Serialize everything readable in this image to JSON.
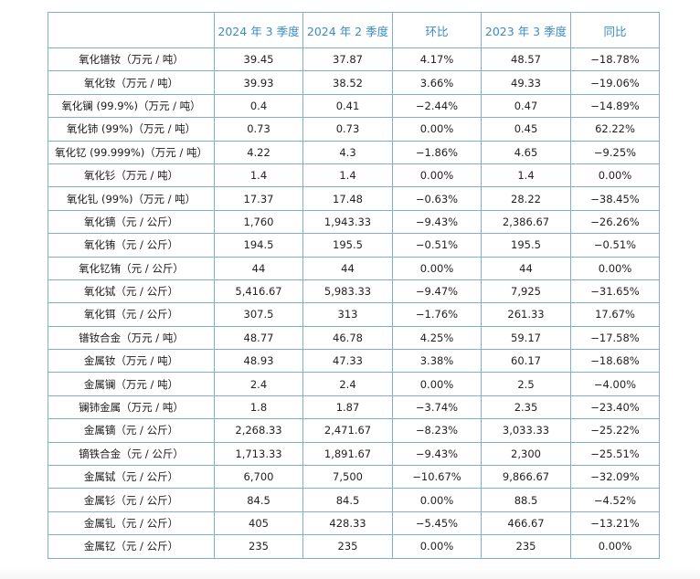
{
  "headers": [
    "",
    "2024 年 3 季度",
    "2024 年 2 季度",
    "环比",
    "2023 年 3 季度",
    "同比"
  ],
  "rows": [
    {
      "name": "氧化镨钕（万元 / 吨）",
      "q3_2024": "39.45",
      "q2_2024": "37.87",
      "qoq": "4.17%",
      "q3_2023": "48.57",
      "yoy": "−18.78%"
    },
    {
      "name": "氧化钕（万元 / 吨）",
      "q3_2024": "39.93",
      "q2_2024": "38.52",
      "qoq": "3.66%",
      "q3_2023": "49.33",
      "yoy": "−19.06%"
    },
    {
      "name": "氧化镧 (99.9%)（万元 / 吨）",
      "q3_2024": "0.4",
      "q2_2024": "0.41",
      "qoq": "−2.44%",
      "q3_2023": "0.47",
      "yoy": "−14.89%"
    },
    {
      "name": "氧化铈 (99%)（万元 / 吨）",
      "q3_2024": "0.73",
      "q2_2024": "0.73",
      "qoq": "0.00%",
      "q3_2023": "0.45",
      "yoy": "62.22%"
    },
    {
      "name": "氧化钇 (99.999%)（万元 / 吨）",
      "q3_2024": "4.22",
      "q2_2024": "4.3",
      "qoq": "−1.86%",
      "q3_2023": "4.65",
      "yoy": "−9.25%"
    },
    {
      "name": "氧化钐（万元 / 吨）",
      "q3_2024": "1.4",
      "q2_2024": "1.4",
      "qoq": "0.00%",
      "q3_2023": "1.4",
      "yoy": "0.00%"
    },
    {
      "name": "氧化钆 (99%)（万元 / 吨）",
      "q3_2024": "17.37",
      "q2_2024": "17.48",
      "qoq": "−0.63%",
      "q3_2023": "28.22",
      "yoy": "−38.45%"
    },
    {
      "name": "氧化镝（元 / 公斤）",
      "q3_2024": "1,760",
      "q2_2024": "1,943.33",
      "qoq": "−9.43%",
      "q3_2023": "2,386.67",
      "yoy": "−26.26%"
    },
    {
      "name": "氧化铕（元 / 公斤）",
      "q3_2024": "194.5",
      "q2_2024": "195.5",
      "qoq": "−0.51%",
      "q3_2023": "195.5",
      "yoy": "−0.51%"
    },
    {
      "name": "氧化钇铕（元 / 公斤）",
      "q3_2024": "44",
      "q2_2024": "44",
      "qoq": "0.00%",
      "q3_2023": "44",
      "yoy": "0.00%"
    },
    {
      "name": "氧化铽（元 / 公斤）",
      "q3_2024": "5,416.67",
      "q2_2024": "5,983.33",
      "qoq": "−9.47%",
      "q3_2023": "7,925",
      "yoy": "−31.65%"
    },
    {
      "name": "氧化铒（元 / 公斤）",
      "q3_2024": "307.5",
      "q2_2024": "313",
      "qoq": "−1.76%",
      "q3_2023": "261.33",
      "yoy": "17.67%"
    },
    {
      "name": "镨钕合金（万元 / 吨）",
      "q3_2024": "48.77",
      "q2_2024": "46.78",
      "qoq": "4.25%",
      "q3_2023": "59.17",
      "yoy": "−17.58%"
    },
    {
      "name": "金属钕（万元 / 吨）",
      "q3_2024": "48.93",
      "q2_2024": "47.33",
      "qoq": "3.38%",
      "q3_2023": "60.17",
      "yoy": "−18.68%"
    },
    {
      "name": "金属镧（万元 / 吨）",
      "q3_2024": "2.4",
      "q2_2024": "2.4",
      "qoq": "0.00%",
      "q3_2023": "2.5",
      "yoy": "−4.00%"
    },
    {
      "name": "镧铈金属（万元 / 吨）",
      "q3_2024": "1.8",
      "q2_2024": "1.87",
      "qoq": "−3.74%",
      "q3_2023": "2.35",
      "yoy": "−23.40%"
    },
    {
      "name": "金属镝（元 / 公斤）",
      "q3_2024": "2,268.33",
      "q2_2024": "2,471.67",
      "qoq": "−8.23%",
      "q3_2023": "3,033.33",
      "yoy": "−25.22%"
    },
    {
      "name": "镝铁合金（元 / 公斤）",
      "q3_2024": "1,713.33",
      "q2_2024": "1,891.67",
      "qoq": "−9.43%",
      "q3_2023": "2,300",
      "yoy": "−25.51%"
    },
    {
      "name": "金属铽（元 / 公斤）",
      "q3_2024": "6,700",
      "q2_2024": "7,500",
      "qoq": "−10.67%",
      "q3_2023": "9,866.67",
      "yoy": "−32.09%"
    },
    {
      "name": "金属钐（元 / 公斤）",
      "q3_2024": "84.5",
      "q2_2024": "84.5",
      "qoq": "0.00%",
      "q3_2023": "88.5",
      "yoy": "−4.52%"
    },
    {
      "name": "金属钆（元 / 公斤）",
      "q3_2024": "405",
      "q2_2024": "428.33",
      "qoq": "−5.45%",
      "q3_2023": "466.67",
      "yoy": "−13.21%"
    },
    {
      "name": "金属钇（元 / 公斤）",
      "q3_2024": "235",
      "q2_2024": "235",
      "qoq": "0.00%",
      "q3_2023": "235",
      "yoy": "0.00%"
    }
  ]
}
